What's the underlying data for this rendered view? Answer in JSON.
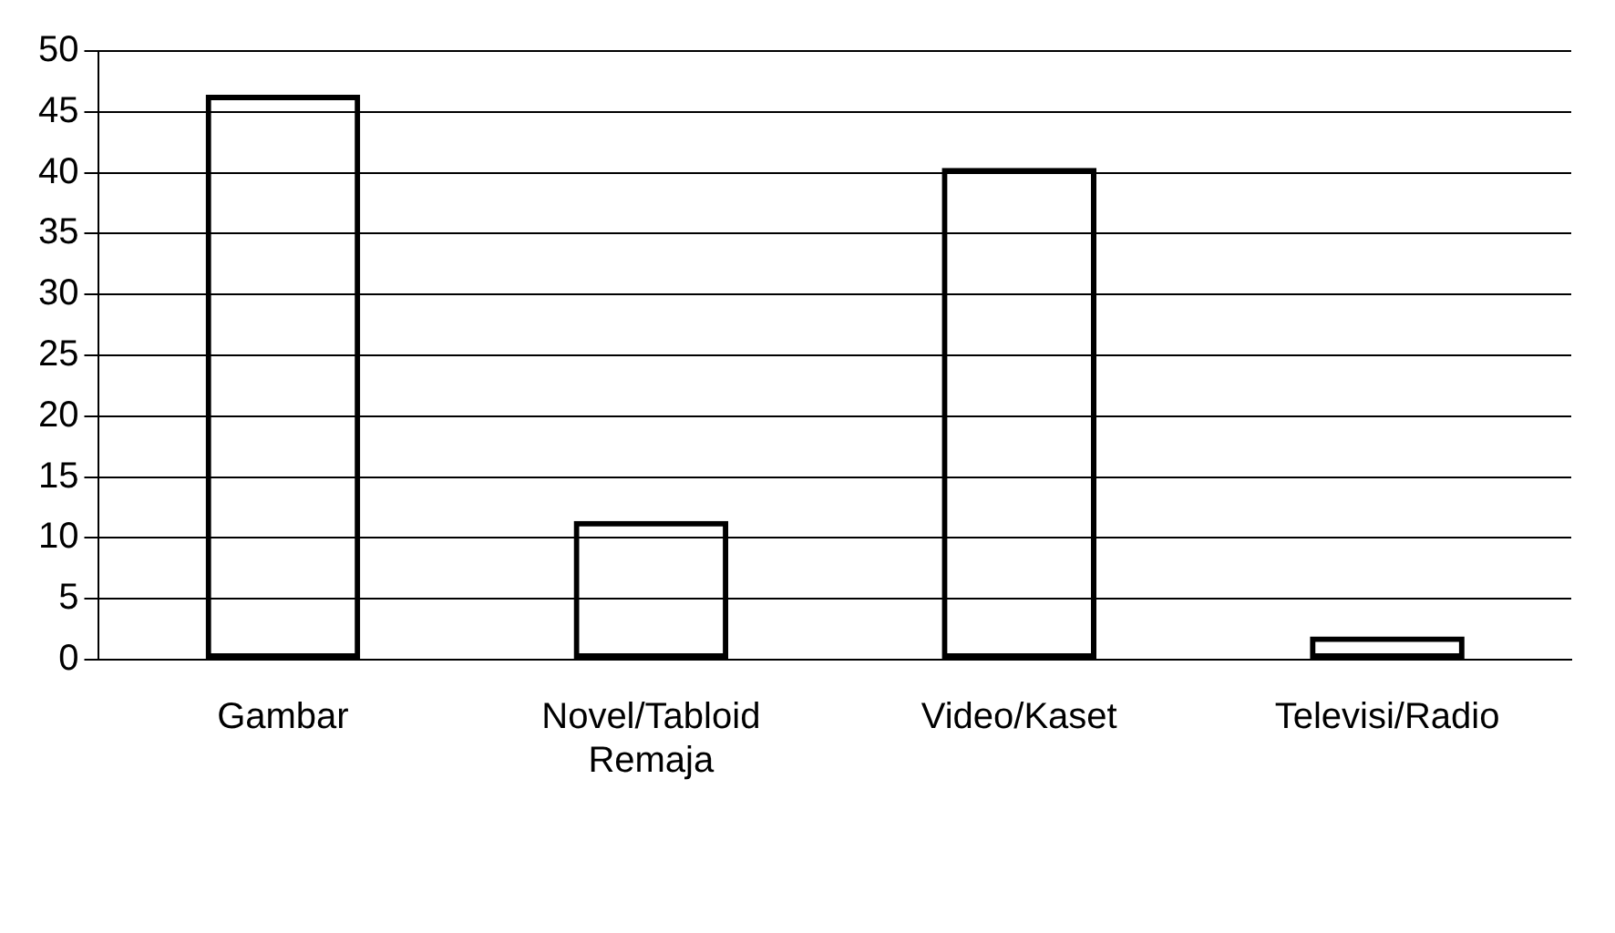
{
  "chart_data": {
    "type": "bar",
    "categories": [
      "Gambar",
      "Novel/Tabloid Remaja",
      "Video/Kaset",
      "Televisi/Radio"
    ],
    "values": [
      46.4,
      11.4,
      40.4,
      1.9
    ],
    "color": "#000000",
    "ylim": [
      0,
      50
    ],
    "yticks": [
      0,
      5,
      10,
      15,
      20,
      25,
      30,
      35,
      40,
      45,
      50
    ],
    "grid": "y",
    "legend": false
  }
}
